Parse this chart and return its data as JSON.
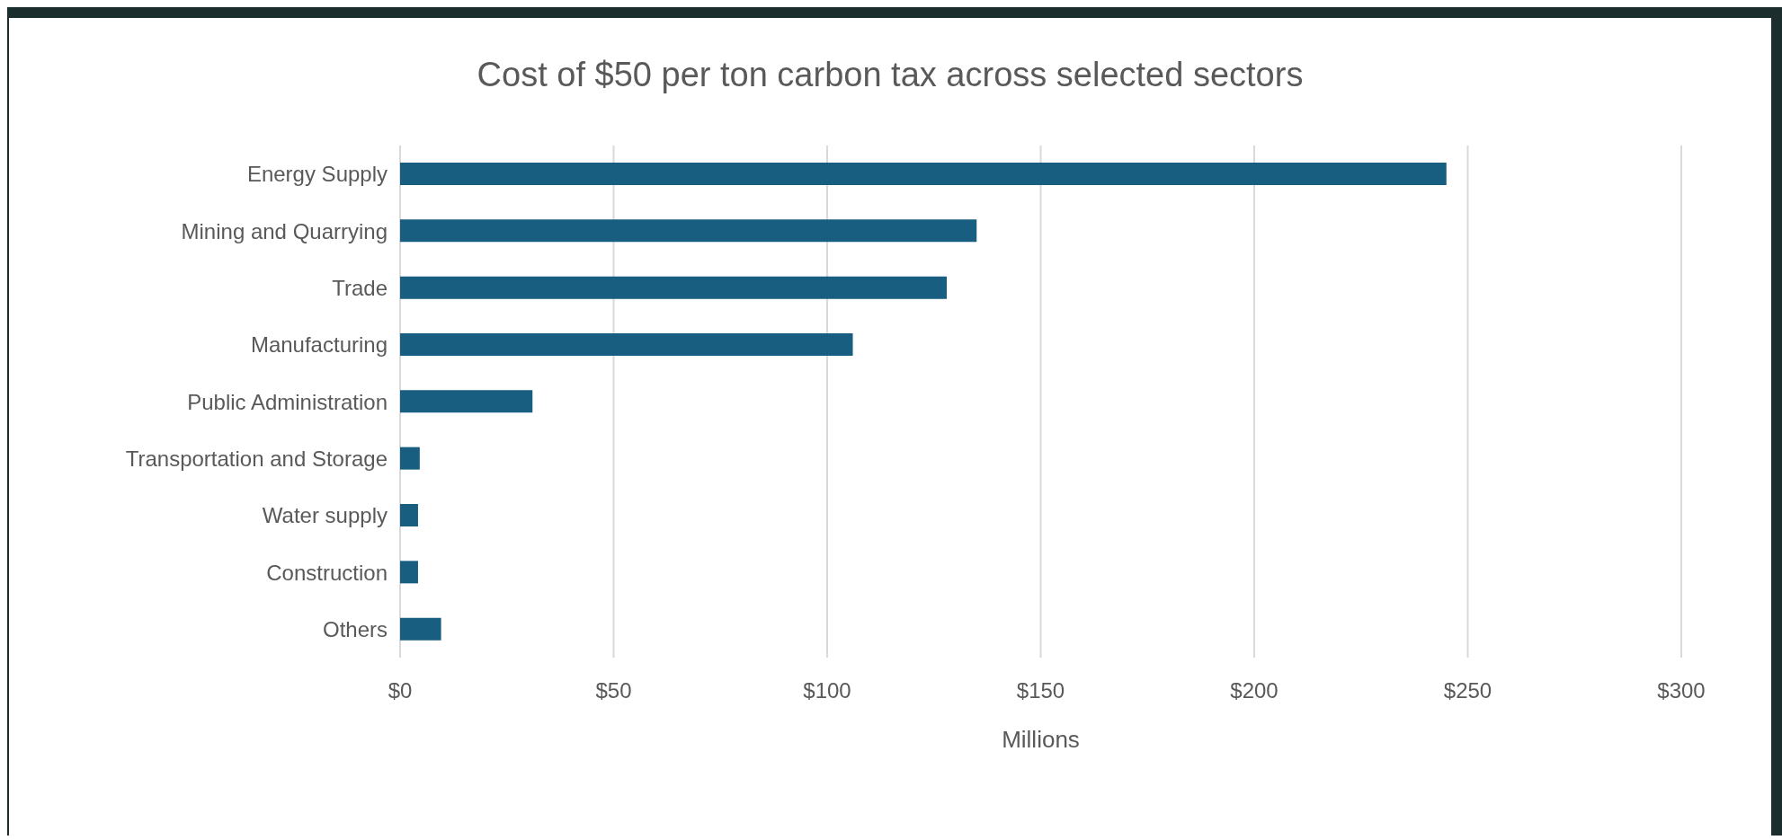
{
  "chart_data": {
    "type": "bar",
    "orientation": "horizontal",
    "title": "Cost of $50 per ton carbon tax across selected sectors",
    "xlabel": "Millions",
    "categories": [
      "Energy Supply",
      "Mining and Quarrying",
      "Trade",
      "Manufacturing",
      "Public Administration",
      "Transportation and Storage",
      "Water supply",
      "Construction",
      "Others"
    ],
    "values": [
      245,
      135,
      128,
      106,
      31,
      4.6,
      4.2,
      4.2,
      9.6
    ],
    "color": "#175e81",
    "xlim": [
      0,
      300
    ],
    "xticks": [
      {
        "value": 0,
        "label": "$0"
      },
      {
        "value": 50,
        "label": "$50"
      },
      {
        "value": 100,
        "label": "$100"
      },
      {
        "value": 150,
        "label": "$150"
      },
      {
        "value": 200,
        "label": "$200"
      },
      {
        "value": 250,
        "label": "$250"
      },
      {
        "value": 300,
        "label": "$300"
      }
    ],
    "grid": "x",
    "legend": false
  }
}
